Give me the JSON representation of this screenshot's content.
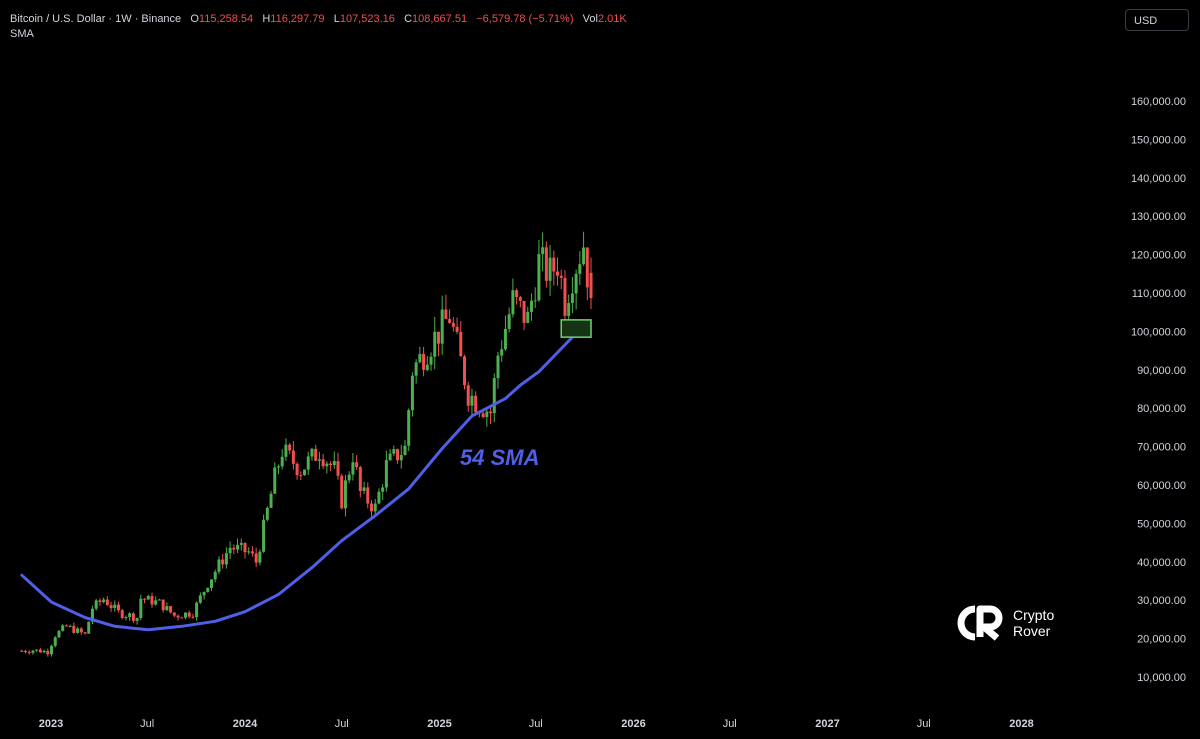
{
  "header": {
    "symbol": "Bitcoin / U.S. Dollar · 1W · Binance",
    "open_label": "O",
    "open": "115,258.54",
    "high_label": "H",
    "high": "116,297.79",
    "low_label": "L",
    "low": "107,523.16",
    "close_label": "C",
    "close": "108,667.51",
    "change": "−6,579.78 (−5.71%)",
    "vol_label": "Vol",
    "volume": "2.01K",
    "indicator": "SMA"
  },
  "currency_button": "USD",
  "brand": {
    "line1": "Crypto",
    "line2": "Rover"
  },
  "colors": {
    "up": "#4caf50",
    "down": "#f0504f",
    "sma": "#4f5fe8",
    "zone_fill": "#163316",
    "zone_border": "#6fd36f"
  },
  "chart_data": {
    "type": "candlestick",
    "interval": "1W",
    "y_axis": {
      "position": "right",
      "ticks": [
        10000,
        20000,
        30000,
        40000,
        50000,
        60000,
        70000,
        80000,
        90000,
        100000,
        110000,
        120000,
        130000,
        140000,
        150000,
        160000
      ],
      "tick_labels": [
        "10,000.00",
        "20,000.00",
        "30,000.00",
        "40,000.00",
        "50,000.00",
        "60,000.00",
        "70,000.00",
        "80,000.00",
        "90,000.00",
        "100,000.00",
        "110,000.00",
        "120,000.00",
        "130,000.00",
        "140,000.00",
        "150,000.00",
        "160,000.00"
      ]
    },
    "x_axis": {
      "ticks": [
        "2023-01-01",
        "2023-07-01",
        "2024-01-01",
        "2024-07-01",
        "2025-01-01",
        "2025-07-01",
        "2026-01-01",
        "2026-07-01",
        "2027-01-01",
        "2027-07-01",
        "2028-01-01"
      ],
      "tick_labels": [
        "2023",
        "Jul",
        "2024",
        "Jul",
        "2025",
        "Jul",
        "2026",
        "Jul",
        "2027",
        "Jul",
        "2028"
      ]
    },
    "annotation": "54 SMA",
    "support_zone": {
      "from": "2025-08-18",
      "to": "2025-10-13",
      "low": 98500,
      "high": 103000
    },
    "candle_anchors": [
      [
        "2022-11-07",
        16800
      ],
      [
        "2022-11-28",
        17000
      ],
      [
        "2022-12-26",
        16600
      ],
      [
        "2023-01-09",
        20900
      ],
      [
        "2023-01-30",
        23200
      ],
      [
        "2023-03-06",
        21000
      ],
      [
        "2023-03-20",
        28000
      ],
      [
        "2023-04-10",
        30300
      ],
      [
        "2023-05-08",
        26800
      ],
      [
        "2023-06-12",
        25500
      ],
      [
        "2023-06-19",
        30500
      ],
      [
        "2023-07-24",
        29300
      ],
      [
        "2023-08-21",
        26000
      ],
      [
        "2023-09-25",
        26800
      ],
      [
        "2023-10-23",
        34500
      ],
      [
        "2023-12-04",
        43800
      ],
      [
        "2024-01-08",
        42500
      ],
      [
        "2024-01-22",
        40000
      ],
      [
        "2024-02-26",
        62000
      ],
      [
        "2024-03-11",
        69000
      ],
      [
        "2024-04-15",
        64000
      ],
      [
        "2024-05-20",
        69000
      ],
      [
        "2024-06-17",
        64000
      ],
      [
        "2024-07-01",
        56000
      ],
      [
        "2024-07-22",
        68000
      ],
      [
        "2024-08-05",
        58000
      ],
      [
        "2024-09-02",
        54000
      ],
      [
        "2024-09-23",
        65000
      ],
      [
        "2024-10-14",
        68000
      ],
      [
        "2024-10-28",
        69500
      ],
      [
        "2024-11-11",
        90000
      ],
      [
        "2024-12-16",
        97000
      ],
      [
        "2025-01-20",
        104000
      ],
      [
        "2025-02-24",
        84000
      ],
      [
        "2025-03-10",
        82000
      ],
      [
        "2025-04-07",
        79000
      ],
      [
        "2025-04-21",
        94000
      ],
      [
        "2025-05-19",
        108000
      ],
      [
        "2025-06-16",
        103000
      ],
      [
        "2025-07-07",
        118000
      ],
      [
        "2025-07-28",
        115000
      ],
      [
        "2025-08-11",
        118000
      ],
      [
        "2025-08-25",
        108000
      ],
      [
        "2025-09-08",
        115000
      ],
      [
        "2025-09-29",
        123000
      ],
      [
        "2025-10-06",
        115258
      ],
      [
        "2025-10-13",
        108667
      ]
    ],
    "sma_54": [
      [
        "2022-11-07",
        36500
      ],
      [
        "2023-01-02",
        29500
      ],
      [
        "2023-03-06",
        25500
      ],
      [
        "2023-05-01",
        23200
      ],
      [
        "2023-07-03",
        22300
      ],
      [
        "2023-09-04",
        23200
      ],
      [
        "2023-11-06",
        24500
      ],
      [
        "2024-01-01",
        27000
      ],
      [
        "2024-03-04",
        31500
      ],
      [
        "2024-05-06",
        38500
      ],
      [
        "2024-07-01",
        45500
      ],
      [
        "2024-09-02",
        52000
      ],
      [
        "2024-11-04",
        59000
      ],
      [
        "2025-01-06",
        69500
      ],
      [
        "2025-03-03",
        78000
      ],
      [
        "2025-05-05",
        82500
      ],
      [
        "2025-06-02",
        86000
      ],
      [
        "2025-07-07",
        89500
      ],
      [
        "2025-08-11",
        94500
      ],
      [
        "2025-09-15",
        99500
      ]
    ]
  }
}
